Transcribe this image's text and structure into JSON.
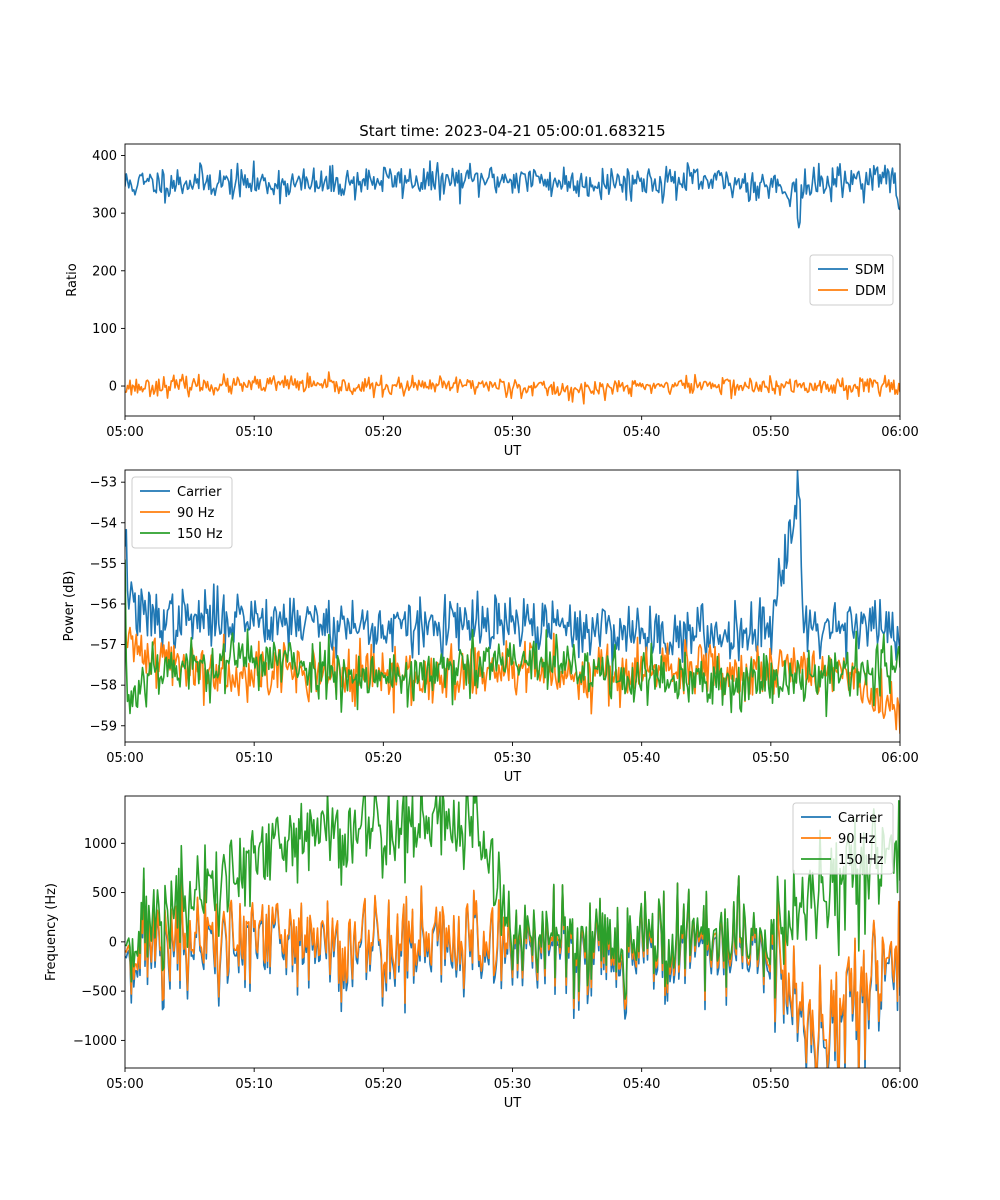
{
  "figure": {
    "title": "Start time: 2023-04-21 05:00:01.683215"
  },
  "chart_data": [
    {
      "type": "line",
      "xlabel": "UT",
      "ylabel": "Ratio",
      "xlim": [
        "05:00",
        "06:00"
      ],
      "ylim": [
        -52,
        420
      ],
      "xticks": [
        "05:00",
        "05:10",
        "05:20",
        "05:30",
        "05:40",
        "05:50",
        "06:00"
      ],
      "yticks": [
        0,
        100,
        200,
        300,
        400
      ],
      "yticklabels": [
        "0",
        "100",
        "200",
        "300",
        "400"
      ],
      "legend_position": "center-right",
      "series": [
        {
          "name": "SDM",
          "color": "#1f77b4",
          "x": [
            0,
            5,
            10,
            15,
            20,
            25,
            30,
            35,
            40,
            45,
            50,
            52,
            52.2,
            52.4,
            55,
            58,
            59.5,
            60
          ],
          "y": [
            350,
            355,
            352,
            350,
            358,
            355,
            360,
            352,
            356,
            354,
            350,
            340,
            258,
            345,
            355,
            362,
            360,
            315
          ]
        },
        {
          "name": "DDM",
          "color": "#ff7f0e",
          "x": [
            0,
            5,
            10,
            13,
            15,
            20,
            25,
            26.5,
            30,
            35,
            40,
            45,
            50,
            55,
            60
          ],
          "y": [
            -2,
            2,
            0,
            5,
            0,
            -2,
            0,
            3,
            0,
            -8,
            0,
            2,
            -2,
            0,
            4
          ]
        }
      ]
    },
    {
      "type": "line",
      "xlabel": "UT",
      "ylabel": "Power (dB)",
      "xlim": [
        "05:00",
        "06:00"
      ],
      "ylim": [
        -59.4,
        -52.7
      ],
      "xticks": [
        "05:00",
        "05:10",
        "05:20",
        "05:30",
        "05:40",
        "05:50",
        "06:00"
      ],
      "yticks": [
        -59,
        -58,
        -57,
        -56,
        -55,
        -54,
        -53
      ],
      "yticklabels": [
        "−59",
        "−58",
        "−57",
        "−56",
        "−55",
        "−54",
        "−53"
      ],
      "legend_position": "top-left",
      "series": [
        {
          "name": "Carrier",
          "color": "#1f77b4",
          "x": [
            0,
            0.2,
            1,
            5,
            10,
            20,
            30,
            40,
            45,
            50,
            52.2,
            52.5,
            55,
            58,
            60
          ],
          "y": [
            -54.2,
            -55.5,
            -56.3,
            -56.4,
            -56.3,
            -56.6,
            -56.5,
            -56.7,
            -56.8,
            -56.5,
            -52.9,
            -56.6,
            -56.5,
            -56.4,
            -56.9
          ]
        },
        {
          "name": "90 Hz",
          "color": "#ff7f0e",
          "x": [
            0,
            2,
            5,
            10,
            15,
            20,
            25,
            30,
            35,
            40,
            45,
            50,
            55,
            60
          ],
          "y": [
            -57.0,
            -57.2,
            -57.6,
            -57.6,
            -57.7,
            -57.8,
            -57.8,
            -57.6,
            -57.7,
            -57.7,
            -57.6,
            -57.6,
            -57.6,
            -58.8
          ]
        },
        {
          "name": "150 Hz",
          "color": "#2ca02c",
          "x": [
            0,
            0.2,
            2,
            5,
            10,
            15,
            20,
            25,
            30,
            35,
            40,
            45,
            50,
            55,
            60
          ],
          "y": [
            -55.4,
            -58.5,
            -57.5,
            -57.6,
            -57.3,
            -57.6,
            -57.8,
            -57.7,
            -57.4,
            -57.6,
            -57.8,
            -58.0,
            -57.8,
            -57.7,
            -57.5
          ]
        }
      ]
    },
    {
      "type": "line",
      "xlabel": "UT",
      "ylabel": "Frequency (Hz)",
      "xlim": [
        "05:00",
        "06:00"
      ],
      "ylim": [
        -1280,
        1480
      ],
      "xticks": [
        "05:00",
        "05:10",
        "05:20",
        "05:30",
        "05:40",
        "05:50",
        "06:00"
      ],
      "yticks": [
        -1000,
        -500,
        0,
        500,
        1000
      ],
      "yticklabels": [
        "−1000",
        "−500",
        "0",
        "500",
        "1000"
      ],
      "legend_position": "top-right",
      "series": [
        {
          "name": "Carrier",
          "color": "#1f77b4",
          "x": [
            0,
            10,
            20,
            30,
            40,
            50,
            53.3,
            60
          ],
          "y": [
            -50,
            -40,
            -50,
            -40,
            -60,
            -50,
            -1160,
            -60
          ]
        },
        {
          "name": "90 Hz",
          "color": "#ff7f0e",
          "x": [
            0,
            10,
            20,
            30,
            40,
            50,
            53.3,
            60
          ],
          "y": [
            0,
            10,
            0,
            10,
            -10,
            0,
            -1080,
            -10
          ]
        },
        {
          "name": "150 Hz",
          "color": "#2ca02c",
          "x": [
            0,
            14.8,
            25.2,
            27.5,
            30,
            40,
            50,
            60
          ],
          "y": [
            50,
            1130,
            1200,
            1150,
            60,
            40,
            50,
            1040
          ]
        }
      ]
    }
  ]
}
